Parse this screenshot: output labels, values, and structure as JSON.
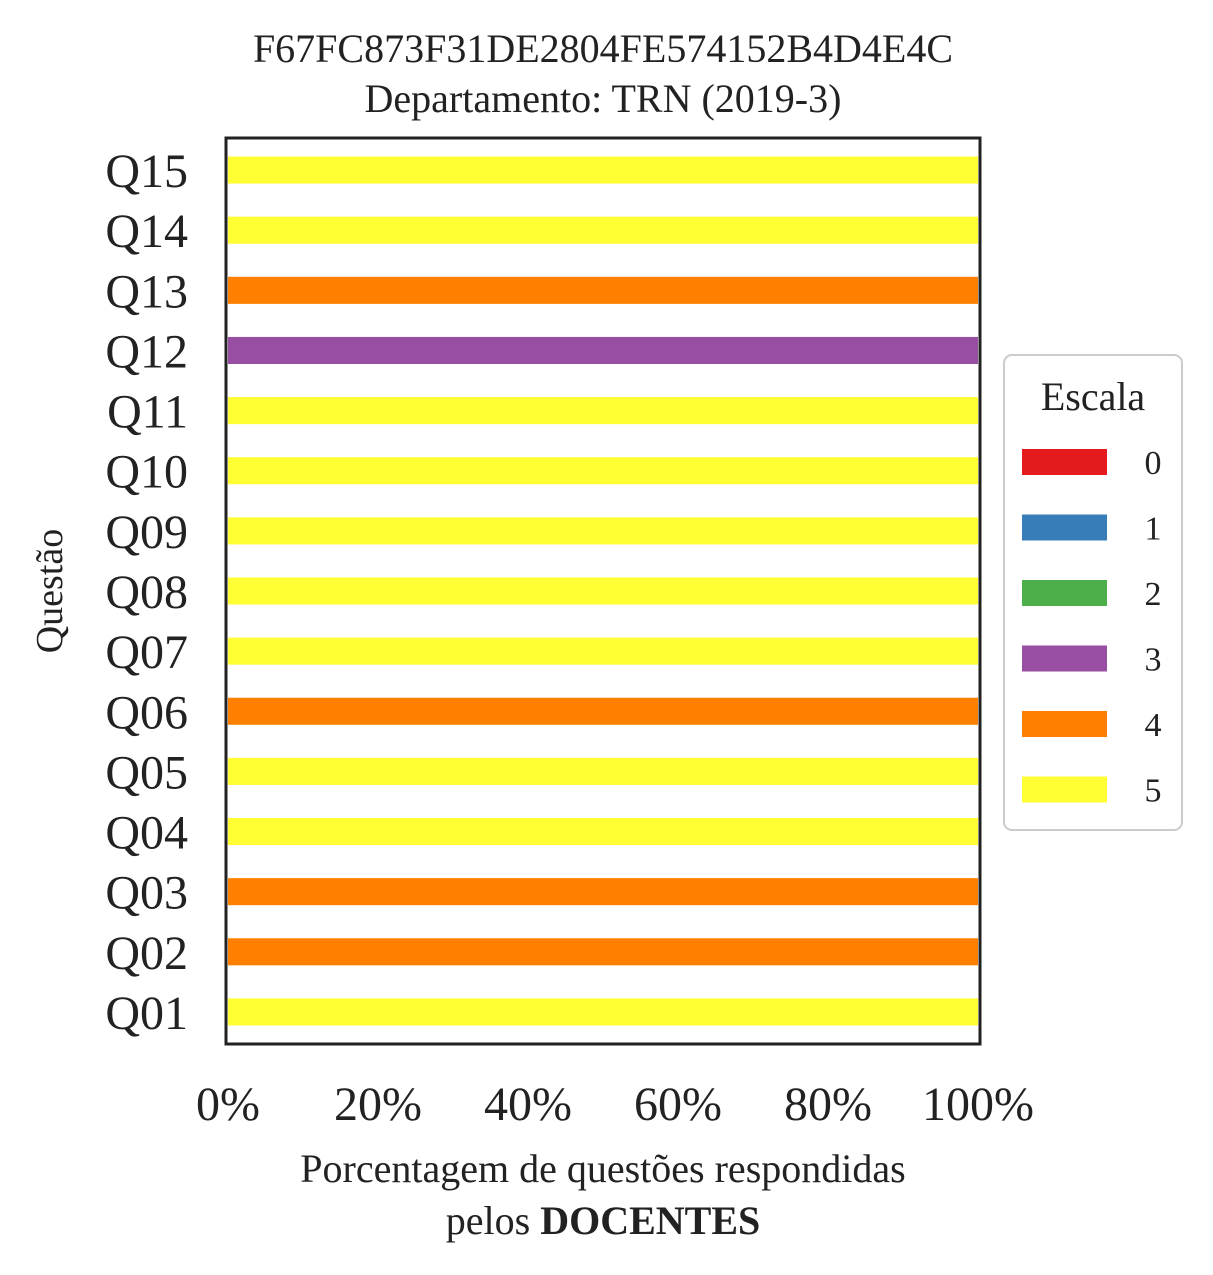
{
  "chart_data": {
    "type": "bar",
    "orientation": "horizontal",
    "stacked": true,
    "title": "F67FC873F31DE2804FE574152B4D4E4C",
    "subtitle": "Departamento: TRN (2019-3)",
    "xlabel_line1": "Porcentagem de questões respondidas",
    "xlabel_line2_prefix": "pelos ",
    "xlabel_line2_bold": "DOCENTES",
    "ylabel": "Questão",
    "xlim": [
      0,
      100
    ],
    "x_ticks": [
      "0%",
      "20%",
      "40%",
      "60%",
      "80%",
      "100%"
    ],
    "categories": [
      "Q01",
      "Q02",
      "Q03",
      "Q04",
      "Q05",
      "Q06",
      "Q07",
      "Q08",
      "Q09",
      "Q10",
      "Q11",
      "Q12",
      "Q13",
      "Q14",
      "Q15"
    ],
    "legend": {
      "title": "Escala",
      "placement": "center-right outside",
      "entries": [
        {
          "label": "0",
          "color": "#e41a1c"
        },
        {
          "label": "1",
          "color": "#377eb8"
        },
        {
          "label": "2",
          "color": "#4daf4a"
        },
        {
          "label": "3",
          "color": "#984ea3"
        },
        {
          "label": "4",
          "color": "#ff7f00"
        },
        {
          "label": "5",
          "color": "#ffff33"
        }
      ]
    },
    "series": [
      {
        "name": "0",
        "color": "#e41a1c",
        "values": [
          0,
          0,
          0,
          0,
          0,
          0,
          0,
          0,
          0,
          0,
          0,
          0,
          0,
          0,
          0
        ]
      },
      {
        "name": "1",
        "color": "#377eb8",
        "values": [
          0,
          0,
          0,
          0,
          0,
          0,
          0,
          0,
          0,
          0,
          0,
          0,
          0,
          0,
          0
        ]
      },
      {
        "name": "2",
        "color": "#4daf4a",
        "values": [
          0,
          0,
          0,
          0,
          0,
          0,
          0,
          0,
          0,
          0,
          0,
          0,
          0,
          0,
          0
        ]
      },
      {
        "name": "3",
        "color": "#984ea3",
        "values": [
          0,
          0,
          0,
          0,
          0,
          0,
          0,
          0,
          0,
          0,
          0,
          100,
          0,
          0,
          0
        ]
      },
      {
        "name": "4",
        "color": "#ff7f00",
        "values": [
          0,
          100,
          100,
          0,
          0,
          100,
          0,
          0,
          0,
          0,
          0,
          0,
          100,
          0,
          0
        ]
      },
      {
        "name": "5",
        "color": "#ffff33",
        "values": [
          100,
          0,
          0,
          100,
          100,
          0,
          100,
          100,
          100,
          100,
          100,
          0,
          0,
          100,
          100
        ]
      }
    ],
    "grid": false
  }
}
